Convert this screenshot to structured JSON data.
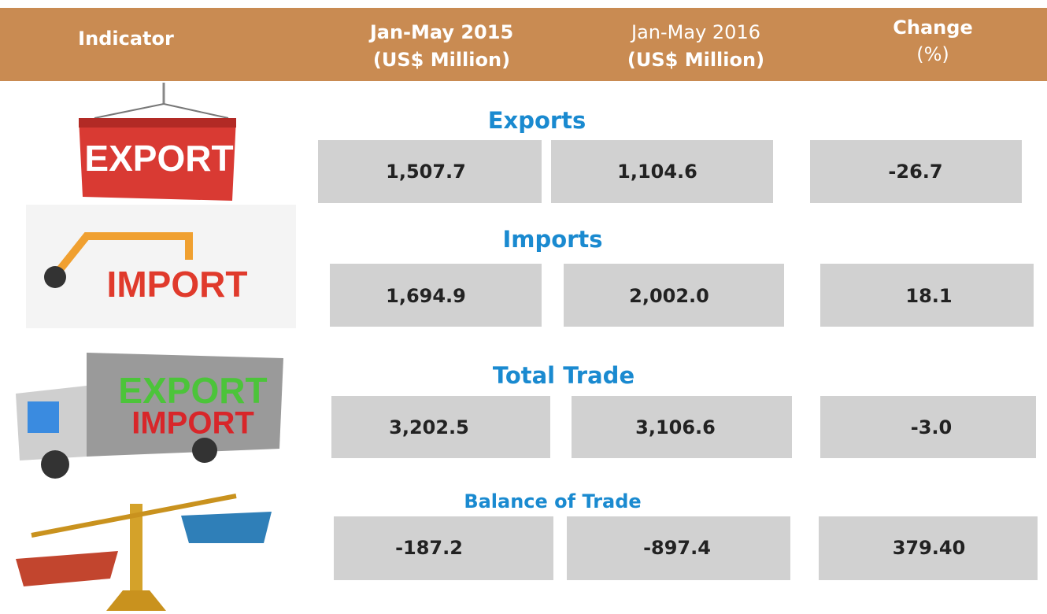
{
  "header": {
    "columns": [
      [
        "Indicator"
      ],
      [
        "Jan-May 2015",
        "(US$ Million)"
      ],
      [
        "Jan-May 2016",
        "(US$ Million)"
      ],
      [
        "Change",
        "(%)"
      ]
    ]
  },
  "rows": [
    {
      "label": "Exports",
      "icon_text": [
        "EXPORT"
      ],
      "values": [
        "1,507.7",
        "1,104.6",
        "-26.7"
      ]
    },
    {
      "label": "Imports",
      "icon_text": [
        "IMPORT"
      ],
      "values": [
        "1,694.9",
        "2,002.0",
        "18.1"
      ]
    },
    {
      "label": "Total Trade",
      "icon_text": [
        "EXPORT",
        "IMPORT"
      ],
      "values": [
        "3,202.5",
        "3,106.6",
        "-3.0"
      ]
    },
    {
      "label": "Balance of Trade",
      "values": [
        "-187.2",
        "-897.4",
        "379.40"
      ]
    }
  ]
}
